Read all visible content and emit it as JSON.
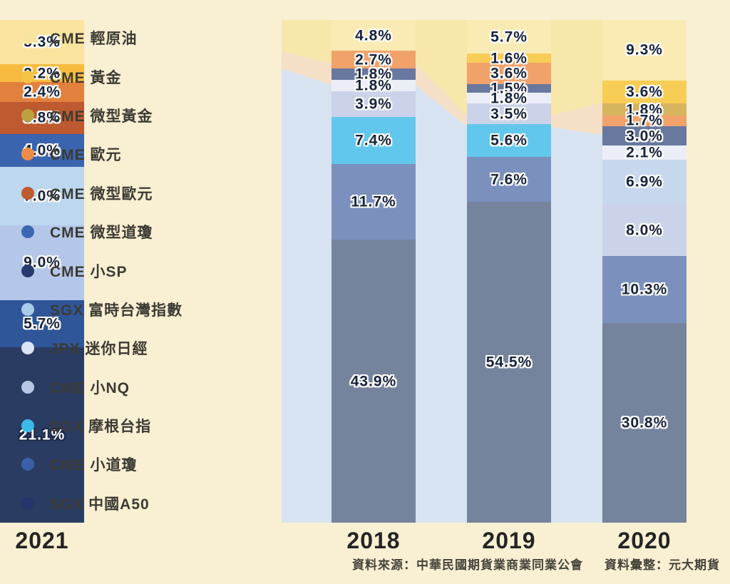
{
  "background_color": "#F9EFD3",
  "legend": {
    "items": [
      {
        "label": "CME 輕原油",
        "color": "#F7E4A0"
      },
      {
        "label": "CME 黃金",
        "color": "#F5C343"
      },
      {
        "label": "CME 微型黃金",
        "color": "#BCA23E"
      },
      {
        "label": "CME 歐元",
        "color": "#EF8B49"
      },
      {
        "label": "CME 微型歐元",
        "color": "#BF5A2E"
      },
      {
        "label": "CME 微型道瓊",
        "color": "#3A67B1"
      },
      {
        "label": "CME 小SP",
        "color": "#273A6E"
      },
      {
        "label": "SGX 富時台灣指數",
        "color": "#A9CBEA"
      },
      {
        "label": "JPX 迷你日經",
        "color": "#DCE5F5"
      },
      {
        "label": "CME 小NQ",
        "color": "#B7C7E5"
      },
      {
        "label": "SGX 摩根台指",
        "color": "#3ABBE8"
      },
      {
        "label": "CME 小道瓊",
        "color": "#3B60A9"
      },
      {
        "label": "SGX 中國A50",
        "color": "#24366B"
      }
    ]
  },
  "chart_data": {
    "type": "bar",
    "stacked": true,
    "unit": "%",
    "categories": [
      "2018",
      "2019",
      "2020",
      "2021"
    ],
    "series": [
      {
        "name": "CME 輕原油",
        "values": [
          4.8,
          5.7,
          9.3,
          5.3
        ]
      },
      {
        "name": "CME 黃金",
        "values": [
          null,
          1.6,
          3.6,
          2.2
        ]
      },
      {
        "name": "CME 微型黃金",
        "values": [
          null,
          null,
          1.8,
          null
        ]
      },
      {
        "name": "CME 歐元",
        "values": [
          2.7,
          3.6,
          1.7,
          2.4
        ]
      },
      {
        "name": "CME 微型歐元",
        "values": [
          null,
          null,
          null,
          3.8
        ]
      },
      {
        "name": "CME 微型道瓊",
        "values": [
          null,
          null,
          null,
          4.0
        ]
      },
      {
        "name": "CME 小SP",
        "values": [
          1.8,
          1.5,
          3.0,
          null
        ]
      },
      {
        "name": "SGX 富時台灣指數",
        "values": [
          null,
          null,
          6.9,
          7.0
        ]
      },
      {
        "name": "JPX 迷你日經",
        "values": [
          1.8,
          1.8,
          2.1,
          null
        ]
      },
      {
        "name": "CME 小NQ",
        "values": [
          3.9,
          3.5,
          8.0,
          9.0
        ]
      },
      {
        "name": "SGX 摩根台指",
        "values": [
          7.4,
          5.6,
          null,
          null
        ]
      },
      {
        "name": "CME 小道瓊",
        "values": [
          11.7,
          7.6,
          10.3,
          5.7
        ]
      },
      {
        "name": "SGX 中國A50",
        "values": [
          43.9,
          54.5,
          30.8,
          21.1
        ]
      }
    ],
    "bars": [
      {
        "year": "2018",
        "segments": [
          {
            "name": "CME 輕原油",
            "value": 4.8,
            "label": "4.8%",
            "color": "#FAEBB5"
          },
          {
            "name": "CME 歐元",
            "value": 2.7,
            "label": "2.7%",
            "color": "#F1A26B"
          },
          {
            "name": "CME 小SP",
            "value": 1.8,
            "label": "1.8%",
            "color": "#68789F"
          },
          {
            "name": "JPX 迷你日經",
            "value": 1.8,
            "label": "1.8%",
            "color": "#EBEEF7"
          },
          {
            "name": "CME 小NQ",
            "value": 3.9,
            "label": "3.9%",
            "color": "#CBD3EA"
          },
          {
            "name": "SGX 摩根台指",
            "value": 7.4,
            "label": "7.4%",
            "color": "#62C7EC"
          },
          {
            "name": "CME 小道瓊",
            "value": 11.7,
            "label": "11.7%",
            "color": "#7B90BD"
          },
          {
            "name": "SGX 中國A50",
            "value": 43.9,
            "label": "43.9%",
            "color": "#76839D"
          }
        ]
      },
      {
        "year": "2019",
        "segments": [
          {
            "name": "CME 輕原油",
            "value": 5.7,
            "label": "5.7%",
            "color": "#FAEBB5"
          },
          {
            "name": "CME 黃金",
            "value": 1.6,
            "label": "1.6%",
            "color": "#F8CD55"
          },
          {
            "name": "CME 歐元",
            "value": 3.6,
            "label": "3.6%",
            "color": "#F1A26B"
          },
          {
            "name": "CME 小SP",
            "value": 1.5,
            "label": "1.5%",
            "color": "#68789F"
          },
          {
            "name": "JPX 迷你日經",
            "value": 1.8,
            "label": "1.8%",
            "color": "#EBEEF7"
          },
          {
            "name": "CME 小NQ",
            "value": 3.5,
            "label": "3.5%",
            "color": "#CBD3EA"
          },
          {
            "name": "SGX 摩根台指",
            "value": 5.6,
            "label": "5.6%",
            "color": "#62C7EC"
          },
          {
            "name": "CME 小道瓊",
            "value": 7.6,
            "label": "7.6%",
            "color": "#7B90BD"
          },
          {
            "name": "SGX 中國A50",
            "value": 54.5,
            "label": "54.5%",
            "color": "#76839D"
          }
        ]
      },
      {
        "year": "2020",
        "segments": [
          {
            "name": "CME 輕原油",
            "value": 9.3,
            "label": "9.3%",
            "color": "#FAEBB5"
          },
          {
            "name": "CME 黃金",
            "value": 3.6,
            "label": "3.6%",
            "color": "#F8CD55"
          },
          {
            "name": "CME 微型黃金",
            "value": 1.8,
            "label": "1.8%",
            "color": "#D7B45E"
          },
          {
            "name": "CME 歐元",
            "value": 1.7,
            "label": "1.7%",
            "color": "#F1A26B"
          },
          {
            "name": "CME 小SP",
            "value": 3.0,
            "label": "3.0%",
            "color": "#68789F"
          },
          {
            "name": "JPX 迷你日經",
            "value": 2.1,
            "label": "2.1%",
            "color": "#EBEEF7"
          },
          {
            "name": "SGX 富時台灣指數",
            "value": 6.9,
            "label": "6.9%",
            "color": "#C7D8EE"
          },
          {
            "name": "CME 小NQ",
            "value": 8.0,
            "label": "8.0%",
            "color": "#CBD3EA"
          },
          {
            "name": "CME 小道瓊",
            "value": 10.3,
            "label": "10.3%",
            "color": "#7B90BD"
          },
          {
            "name": "SGX 中國A50",
            "value": 30.8,
            "label": "30.8%",
            "color": "#76839D"
          }
        ]
      },
      {
        "year": "2021",
        "segments": [
          {
            "name": "CME 輕原油",
            "value": 5.3,
            "label": "5.3%",
            "color": "#FBE3A0"
          },
          {
            "name": "CME 黃金",
            "value": 2.2,
            "label": "2.2%",
            "color": "#F7BC3F"
          },
          {
            "name": "CME 歐元",
            "value": 2.4,
            "label": "2.4%",
            "color": "#E2813D"
          },
          {
            "name": "CME 微型歐元",
            "value": 3.8,
            "label": "3.8%",
            "color": "#BE5A2F"
          },
          {
            "name": "CME 微型道瓊",
            "value": 4.0,
            "label": "4.0%",
            "color": "#3A64AE"
          },
          {
            "name": "SGX 富時台灣指數",
            "value": 7.0,
            "label": "7.0%",
            "color": "#BCD7EE"
          },
          {
            "name": "CME 小NQ",
            "value": 9.0,
            "label": "9.0%",
            "color": "#B5C7E9"
          },
          {
            "name": "CME 小道瓊",
            "value": 5.7,
            "label": "5.7%",
            "color": "#2F5699"
          },
          {
            "name": "SGX 中國A50",
            "value": 21.1,
            "label": "21.1%",
            "color": "#2B3C63",
            "label_style": "light"
          }
        ]
      }
    ]
  },
  "footer": {
    "source": "資料來源：中華民國期貨業商業同業公會",
    "compiled": "資料彙整：元大期貨"
  }
}
